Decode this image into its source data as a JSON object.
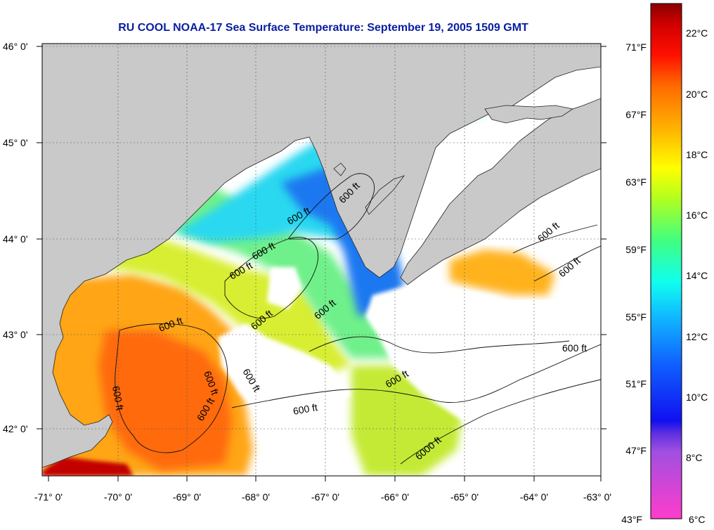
{
  "title": "RU COOL  NOAA-17  Sea Surface Temperature:  September 19, 2005 1509 GMT",
  "colors": {
    "title": "#0a1ea0",
    "land": "#c9c9c9",
    "cloud": "#ffffff",
    "frame": "#000000"
  },
  "map": {
    "lat_labels": [
      "46° 0'",
      "45° 0'",
      "44° 0'",
      "43° 0'",
      "42° 0'"
    ],
    "lon_labels": [
      "-71° 0'",
      "-70° 0'",
      "-69° 0'",
      "-68° 0'",
      "-67° 0'",
      "-66° 0'",
      "-65° 0'",
      "-64° 0'",
      "-63° 0'"
    ],
    "contour_label": "600 ft",
    "contour_label_alt": "6000 ft"
  },
  "colorbar": {
    "celsius": [
      "22°C",
      "20°C",
      "18°C",
      "16°C",
      "14°C",
      "12°C",
      "10°C",
      "8°C",
      "6°C"
    ],
    "fahrenheit": [
      "71°F",
      "67°F",
      "63°F",
      "59°F",
      "55°F",
      "51°F",
      "47°F",
      "43°F"
    ]
  }
}
